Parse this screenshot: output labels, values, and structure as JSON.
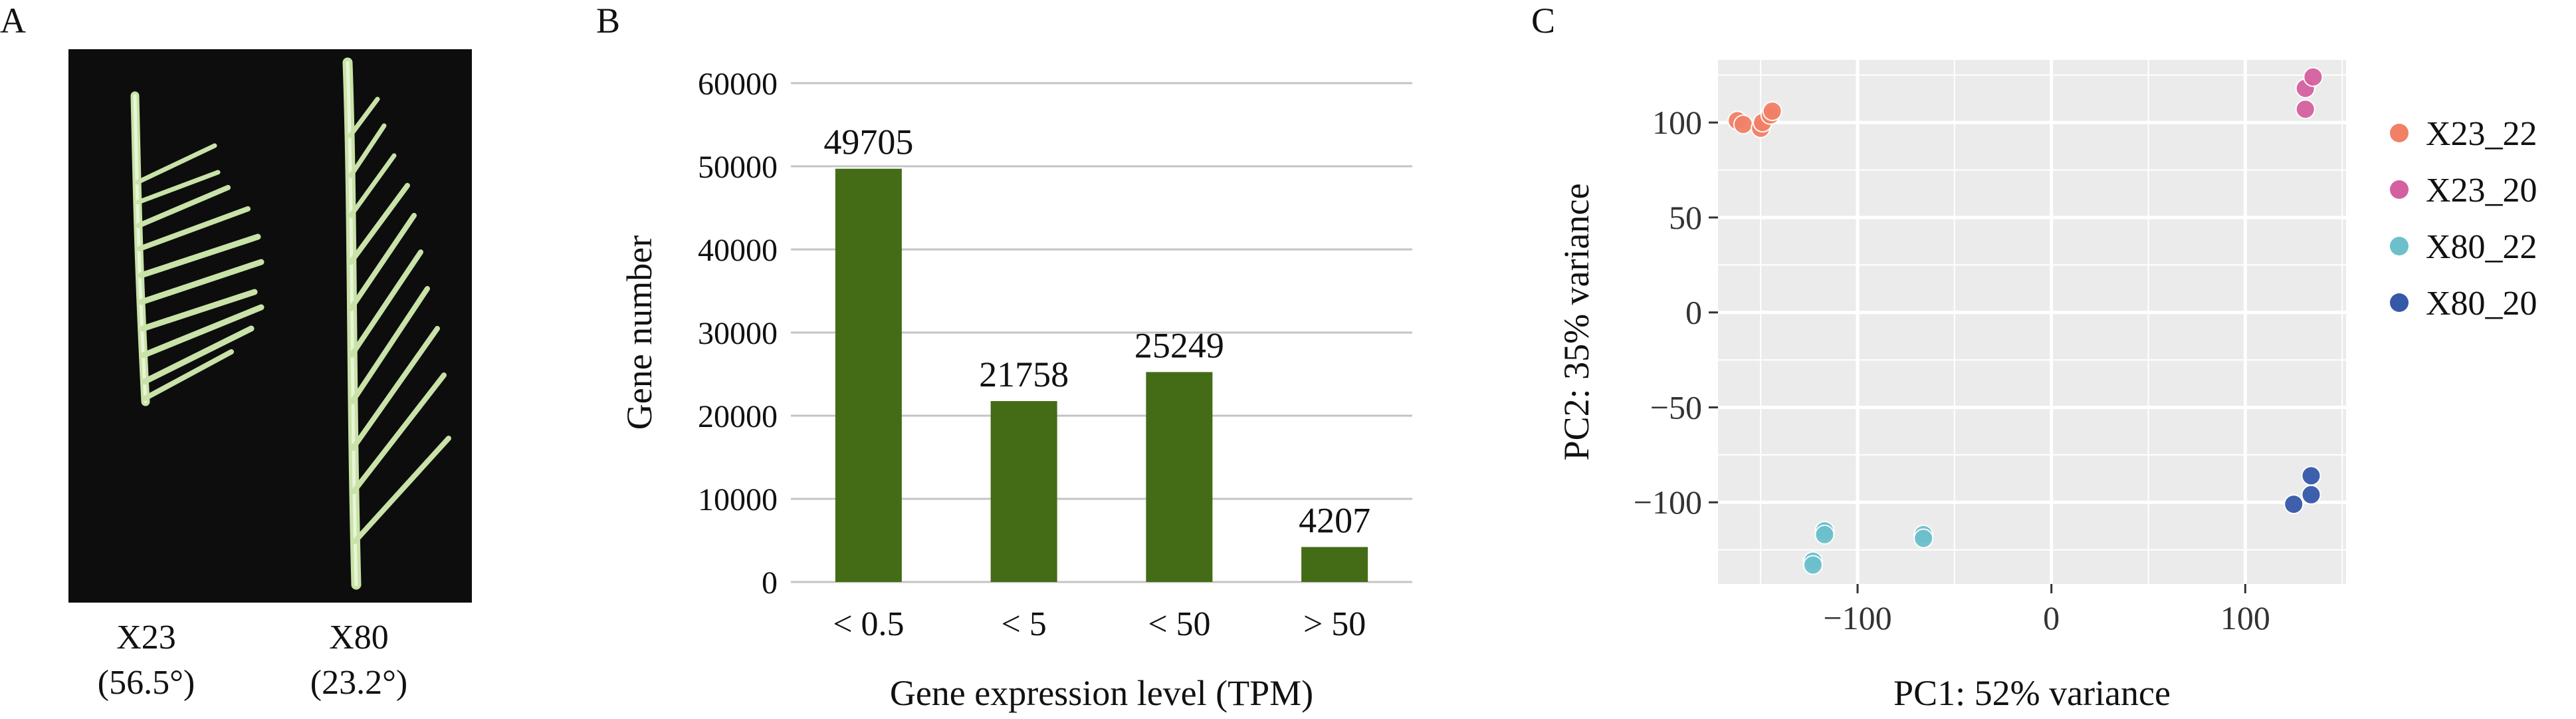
{
  "panels": {
    "a": {
      "letter": "A",
      "samples": [
        {
          "name": "X23",
          "angle": "(56.5°)"
        },
        {
          "name": "X80",
          "angle": "(23.2°)"
        }
      ]
    },
    "b": {
      "letter": "B"
    },
    "c": {
      "letter": "C"
    }
  },
  "colors": {
    "bar": "#446b16",
    "photo_bg": "#0d0d0d",
    "plant_stem": "#c8e2a8",
    "pca_panel_bg": "#ebebeb",
    "X23_22": "#f28066",
    "X23_20": "#d460a0",
    "X80_22": "#6cc0cc",
    "X80_20": "#3558a8"
  },
  "chart_data": [
    {
      "type": "bar",
      "categories": [
        "< 0.5",
        "< 5",
        "< 50",
        "> 50"
      ],
      "values": [
        49705,
        21758,
        25249,
        4207
      ],
      "data_labels": [
        "49705",
        "21758",
        "25249",
        "4207"
      ],
      "xlabel": "Gene expression level (TPM)",
      "ylabel": "Gene number",
      "ylim": [
        0,
        60000
      ],
      "yticks": [
        0,
        10000,
        20000,
        30000,
        40000,
        50000,
        60000
      ],
      "ytick_labels": [
        "0",
        "10000",
        "20000",
        "30000",
        "40000",
        "50000",
        "60000"
      ],
      "grid": "horizontal"
    },
    {
      "type": "scatter",
      "xlabel": "PC1: 52%  variance",
      "ylabel": "PC2: 35% variance",
      "xlim": [
        -172,
        152
      ],
      "ylim": [
        -143,
        133
      ],
      "xticks": [
        -100,
        0,
        100
      ],
      "xtick_labels": [
        "−100",
        "0",
        "100"
      ],
      "yticks": [
        -100,
        -50,
        0,
        50,
        100
      ],
      "ytick_labels": [
        "−100",
        "−50",
        "0",
        "50",
        "100"
      ],
      "grid": true,
      "legend_position": "right",
      "series": [
        {
          "name": "X23_22",
          "points": [
            [
              -162,
              101
            ],
            [
              -159,
              99
            ],
            [
              -150,
              97
            ],
            [
              -149,
              100
            ],
            [
              -145,
              104
            ],
            [
              -144,
              106
            ]
          ]
        },
        {
          "name": "X23_20",
          "points": [
            [
              131,
              118
            ],
            [
              135,
              124
            ],
            [
              131,
              107
            ]
          ]
        },
        {
          "name": "X80_22",
          "points": [
            [
              -117,
              -115
            ],
            [
              -117,
              -117
            ],
            [
              -66,
              -117
            ],
            [
              -66,
              -119
            ],
            [
              -123,
              -131
            ],
            [
              -123,
              -133
            ]
          ]
        },
        {
          "name": "X80_20",
          "points": [
            [
              134,
              -86
            ],
            [
              134,
              -96
            ],
            [
              125,
              -101
            ]
          ]
        }
      ]
    }
  ]
}
